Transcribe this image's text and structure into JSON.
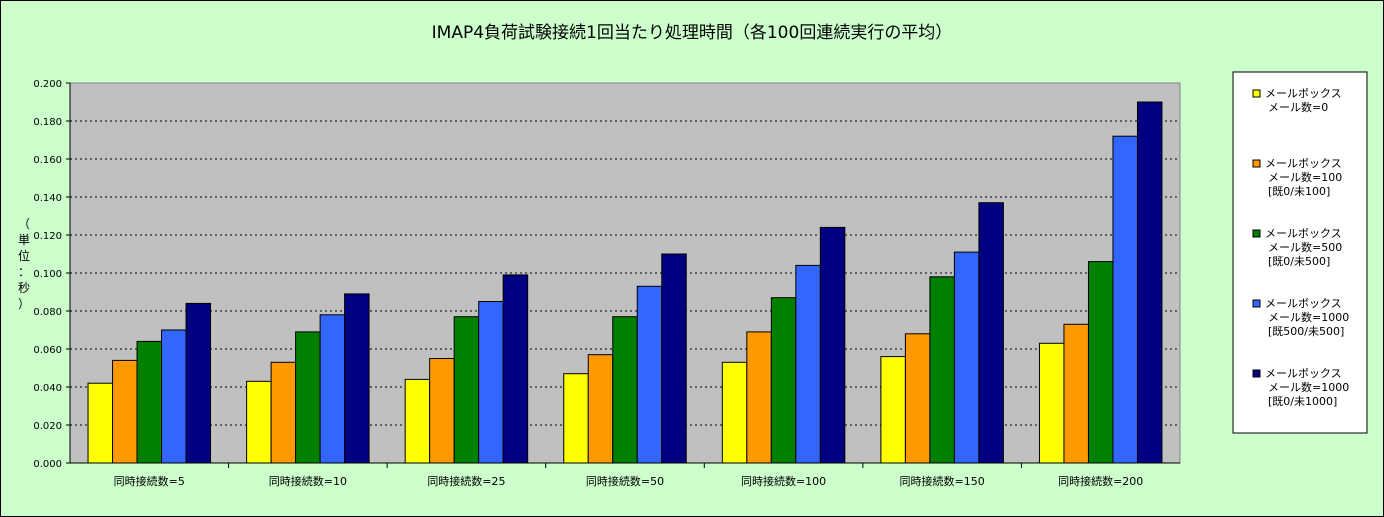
{
  "chart_data": {
    "type": "bar",
    "title": "IMAP4負荷試験接続1回当たり処理時間（各100回連続実行の平均）",
    "ylabel": "（単位：秒）",
    "xlabel": "",
    "ylim": [
      0,
      0.2
    ],
    "yticks": [
      "0.000",
      "0.020",
      "0.040",
      "0.060",
      "0.080",
      "0.100",
      "0.120",
      "0.140",
      "0.160",
      "0.180",
      "0.200"
    ],
    "categories": [
      "同時接続数=5",
      "同時接続数=10",
      "同時接続数=25",
      "同時接続数=50",
      "同時接続数=100",
      "同時接続数=150",
      "同時接続数=200"
    ],
    "series": [
      {
        "name": "メールボックス\nメール数=0",
        "color": "#ffff00",
        "values": [
          0.042,
          0.043,
          0.044,
          0.047,
          0.053,
          0.056,
          0.063
        ]
      },
      {
        "name": "メールボックス\nメール数=100\n[既0/未100]",
        "color": "#ff9900",
        "values": [
          0.054,
          0.053,
          0.055,
          0.057,
          0.069,
          0.068,
          0.073
        ]
      },
      {
        "name": "メールボックス\nメール数=500\n[既0/未500]",
        "color": "#007f00",
        "values": [
          0.064,
          0.069,
          0.077,
          0.077,
          0.087,
          0.098,
          0.106
        ]
      },
      {
        "name": "メールボックス\nメール数=1000\n[既500/未500]",
        "color": "#3366ff",
        "values": [
          0.07,
          0.078,
          0.085,
          0.093,
          0.104,
          0.111,
          0.172
        ]
      },
      {
        "name": "メールボックス\nメール数=1000\n[既0/未1000]",
        "color": "#000080",
        "values": [
          0.084,
          0.089,
          0.099,
          0.11,
          0.124,
          0.137,
          0.19
        ]
      }
    ],
    "grid": true,
    "legend": "right"
  }
}
